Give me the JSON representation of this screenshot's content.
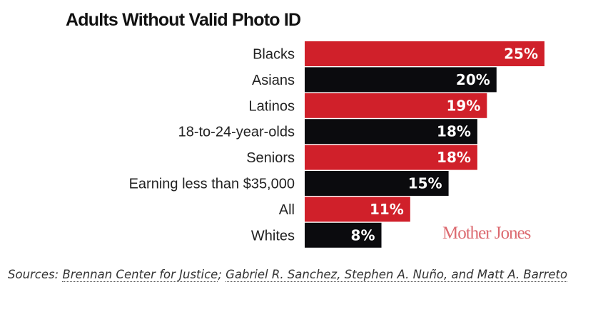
{
  "chart_data": {
    "type": "bar",
    "orientation": "horizontal",
    "title": "Adults Without Valid Photo ID",
    "categories": [
      "Blacks",
      "Asians",
      "Latinos",
      "18-to-24-year-olds",
      "Seniors",
      "Earning less than $35,000",
      "All",
      "Whites"
    ],
    "values": [
      25,
      20,
      19,
      18,
      18,
      15,
      11,
      8
    ],
    "value_labels": [
      "25%",
      "20%",
      "19%",
      "18%",
      "18%",
      "15%",
      "11%",
      "8%"
    ],
    "bar_colors": [
      "#d0202a",
      "#0b0b0e",
      "#d0202a",
      "#0b0b0e",
      "#d0202a",
      "#0b0b0e",
      "#d0202a",
      "#0b0b0e"
    ],
    "xlim": [
      0,
      25
    ],
    "grid": false,
    "xlabel": "",
    "ylabel": ""
  },
  "logo": "Mother Jones",
  "sources": {
    "prefix": "Sources: ",
    "link1": "Brennan Center for Justice",
    "sep": "; ",
    "link2": "Gabriel R. Sanchez, Stephen A. Nuño, and Matt A. Barreto"
  }
}
